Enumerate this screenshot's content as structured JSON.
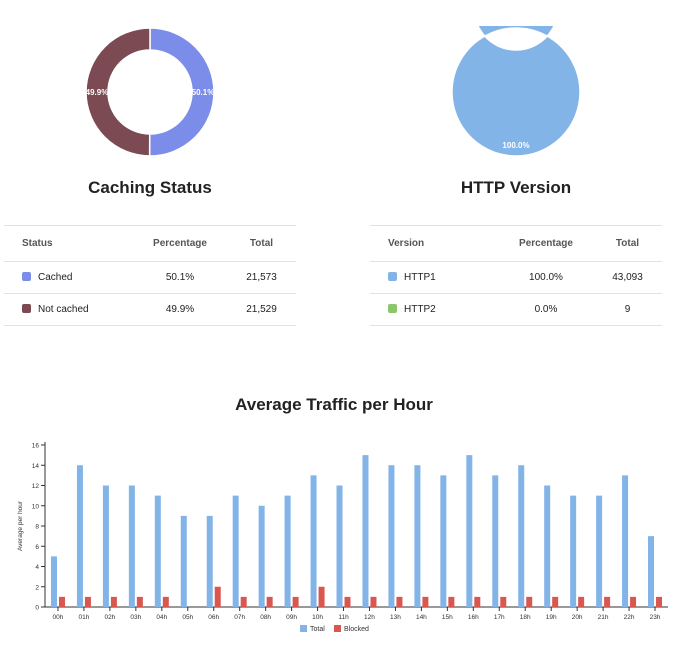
{
  "caching": {
    "title": "Caching Status",
    "columns": [
      "Status",
      "Percentage",
      "Total"
    ],
    "rows": [
      {
        "label": "Cached",
        "percentage": "50.1%",
        "total": "21,573",
        "color": "#7b8de8"
      },
      {
        "label": "Not cached",
        "percentage": "49.9%",
        "total": "21,529",
        "color": "#7b4a52"
      }
    ],
    "donut": [
      {
        "label": "50.1%",
        "value": 50.1,
        "color": "#7b8de8"
      },
      {
        "label": "49.9%",
        "value": 49.9,
        "color": "#7b4a52"
      }
    ]
  },
  "http": {
    "title": "HTTP Version",
    "columns": [
      "Version",
      "Percentage",
      "Total"
    ],
    "rows": [
      {
        "label": "HTTP1",
        "percentage": "100.0%",
        "total": "43,093",
        "color": "#82b4e8"
      },
      {
        "label": "HTTP2",
        "percentage": "0.0%",
        "total": "9",
        "color": "#8cc66a"
      }
    ],
    "donut": [
      {
        "label": "100.0%",
        "value": 100.0,
        "color": "#82b4e8"
      }
    ]
  },
  "chart_data": {
    "type": "bar",
    "title": "Average Traffic per Hour",
    "ylabel": "Average per hour",
    "xlabel": "",
    "ylim": [
      0,
      16
    ],
    "yticks": [
      0,
      2,
      4,
      6,
      8,
      10,
      12,
      14,
      16
    ],
    "categories": [
      "00h",
      "01h",
      "02h",
      "03h",
      "04h",
      "05h",
      "06h",
      "07h",
      "08h",
      "09h",
      "10h",
      "11h",
      "12h",
      "13h",
      "14h",
      "15h",
      "16h",
      "17h",
      "18h",
      "19h",
      "20h",
      "21h",
      "22h",
      "23h"
    ],
    "series": [
      {
        "name": "Total",
        "color": "#82b4e8",
        "values": [
          5,
          14,
          12,
          12,
          11,
          9,
          9,
          11,
          10,
          11,
          13,
          12,
          15,
          14,
          14,
          13,
          15,
          13,
          14,
          12,
          11,
          11,
          13,
          7
        ]
      },
      {
        "name": "Blocked",
        "color": "#d9574f",
        "values": [
          1,
          1,
          1,
          1,
          1,
          0,
          2,
          1,
          1,
          1,
          2,
          1,
          1,
          1,
          1,
          1,
          1,
          1,
          1,
          1,
          1,
          1,
          1,
          1
        ]
      }
    ],
    "legend": "bottom-center"
  }
}
